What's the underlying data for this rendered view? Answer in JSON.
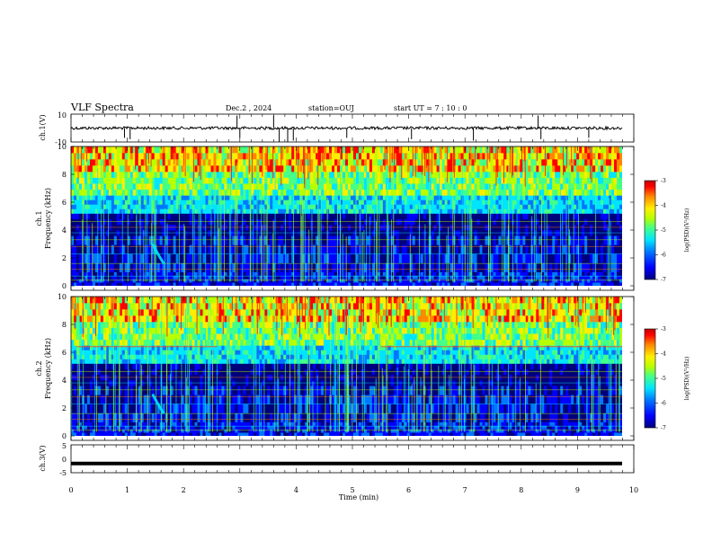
{
  "header": {
    "title": "VLF Spectra",
    "date": "Dec.2 , 2024",
    "station": "station=OUJ",
    "start_ut": "start UT =  7 : 10 : 0"
  },
  "chart_data": [
    {
      "type": "line",
      "panel": "ch1-waveform",
      "ylabel": "ch.1(V)",
      "yticks": [
        "10",
        "-10"
      ],
      "ylim": [
        -10,
        10
      ],
      "xlim": [
        0,
        10
      ],
      "series_color": "#000000",
      "baseline": 0,
      "spikes": [
        {
          "t": 0.95,
          "v": -7
        },
        {
          "t": 1.05,
          "v": -8
        },
        {
          "t": 2.95,
          "v": 9
        },
        {
          "t": 3.0,
          "v": -7
        },
        {
          "t": 3.6,
          "v": 9
        },
        {
          "t": 3.7,
          "v": -10
        },
        {
          "t": 3.85,
          "v": -10
        },
        {
          "t": 3.95,
          "v": -9
        },
        {
          "t": 4.9,
          "v": -7
        },
        {
          "t": 6.05,
          "v": -8
        },
        {
          "t": 7.15,
          "v": -9
        },
        {
          "t": 8.3,
          "v": 9
        },
        {
          "t": 8.35,
          "v": -8
        },
        {
          "t": 9.2,
          "v": -7
        }
      ]
    },
    {
      "type": "heatmap",
      "panel": "ch1-spectrogram",
      "ylabel_channel": "ch.1",
      "ylabel": "Frequency (kHz)",
      "yticks": [
        "0",
        "2",
        "4",
        "6",
        "8",
        "10"
      ],
      "ylim": [
        0,
        10
      ],
      "xlim": [
        0,
        10
      ],
      "colorbar": {
        "label": "log(PSD)(V²/Hz)",
        "ticks": [
          "-3",
          "-4",
          "-5",
          "-6",
          "-7"
        ],
        "range": [
          -7,
          -3
        ]
      }
    },
    {
      "type": "heatmap",
      "panel": "ch2-spectrogram",
      "ylabel_channel": "ch.2",
      "ylabel": "Frequency (kHz)",
      "yticks": [
        "0",
        "2",
        "4",
        "6",
        "8",
        "10"
      ],
      "ylim": [
        0,
        10
      ],
      "xlim": [
        0,
        10
      ],
      "colorbar": {
        "label": "log(PSD)(V²/Hz)",
        "ticks": [
          "-3",
          "-4",
          "-5",
          "-6",
          "-7"
        ],
        "range": [
          -7,
          -3
        ]
      }
    },
    {
      "type": "line",
      "panel": "ch3-waveform",
      "ylabel": "ch.3(V)",
      "yticks": [
        "5",
        "0",
        "-5"
      ],
      "ylim": [
        -5,
        5
      ],
      "xlim": [
        0,
        10
      ],
      "series_color": "#000000",
      "constant_value": -1.7
    }
  ],
  "x_axis": {
    "label": "Time (min)",
    "ticks": [
      "0",
      "1",
      "2",
      "3",
      "4",
      "5",
      "6",
      "7",
      "8",
      "9",
      "10"
    ]
  },
  "colormap": [
    "#00007a",
    "#0000ff",
    "#0077ff",
    "#00e5ff",
    "#44ff88",
    "#b8ff00",
    "#ffee00",
    "#ff8800",
    "#ff0000",
    "#c00000"
  ]
}
